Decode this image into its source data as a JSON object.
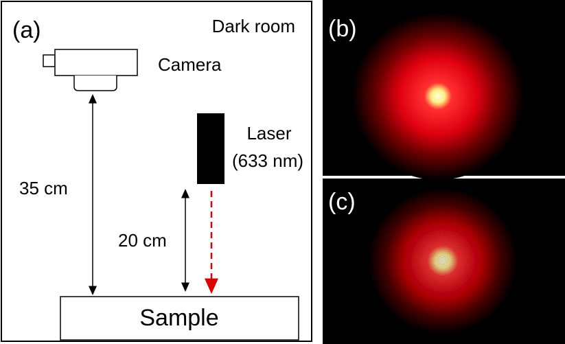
{
  "panel_a": {
    "label": "(a)",
    "room": "Dark room",
    "camera": "Camera",
    "laser": "Laser",
    "wavelength": "(633 nm)",
    "camera_distance": "35 cm",
    "laser_distance": "20 cm",
    "sample": "Sample"
  },
  "panel_b": {
    "label": "(b)"
  },
  "panel_c": {
    "label": "(c)"
  }
}
